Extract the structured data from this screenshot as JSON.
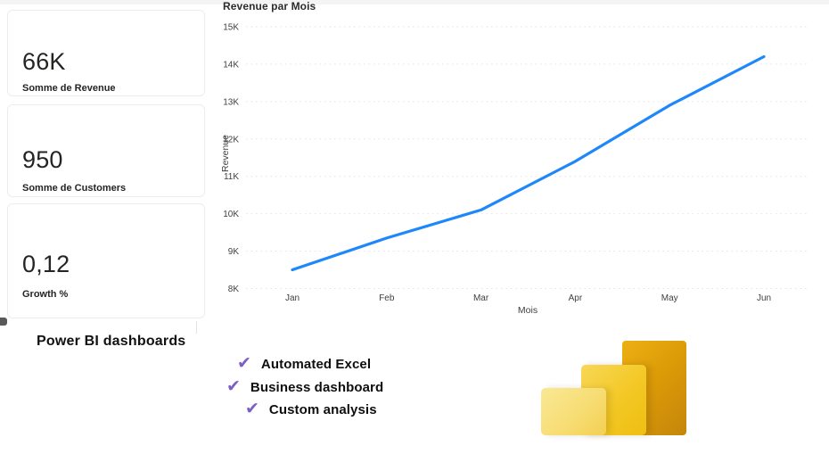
{
  "page": {
    "background": "#ffffff",
    "top_strip_color": "#f4f4f4"
  },
  "kpi_cards": [
    {
      "value": "66K",
      "label": "Somme de Revenue"
    },
    {
      "value": "950",
      "label": "Somme de Customers"
    },
    {
      "value": "0,12",
      "label": "Growth %"
    }
  ],
  "chart_data": {
    "type": "line",
    "title": "Revenue par Mois",
    "xlabel": "Mois",
    "ylabel": "Revenue",
    "categories": [
      "Jan",
      "Feb",
      "Mar",
      "Apr",
      "May",
      "Jun"
    ],
    "series": [
      {
        "name": "Revenue",
        "values": [
          8500,
          9350,
          10100,
          11400,
          12900,
          14200
        ]
      }
    ],
    "ylim": [
      8000,
      15000
    ],
    "ytick_step": 1000,
    "ytick_labels": [
      "8K",
      "9K",
      "10K",
      "11K",
      "12K",
      "13K",
      "14K",
      "15K"
    ],
    "grid": "horizontal-dotted",
    "legend": "none",
    "line_color": "#1E87FA",
    "axis_text_color": "#404040",
    "gridline_color": "#e2e2e2"
  },
  "promo": {
    "heading": "Power BI dashboards",
    "check_color": "#7B5FC7",
    "items": [
      {
        "icon": "checkmark",
        "label": "Automated Excel"
      },
      {
        "icon": "checkmark",
        "label": "Business dashboard"
      },
      {
        "icon": "checkmark",
        "label": "Custom analysis"
      }
    ]
  },
  "logo": {
    "name": "power-bi-bars-logo",
    "bar_colors": [
      "#F7DD74",
      "#F3C825",
      "#DC9B07"
    ]
  }
}
